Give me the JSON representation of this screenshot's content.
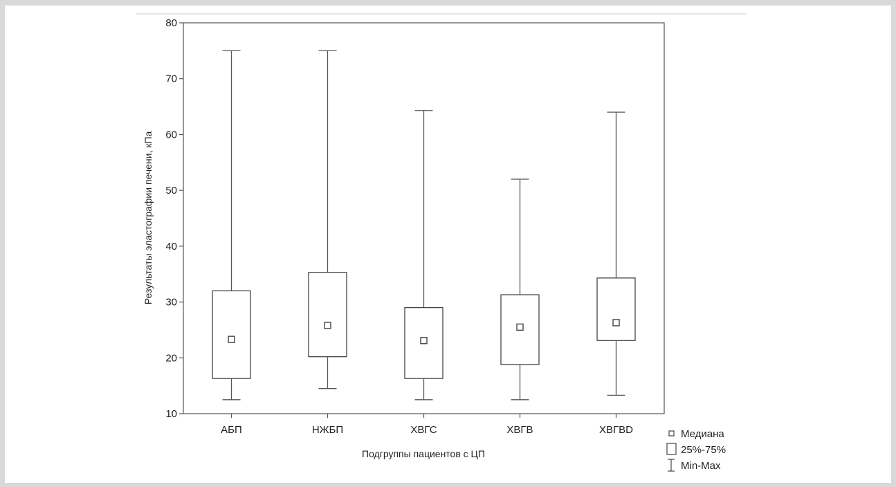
{
  "chart_data": {
    "type": "box",
    "xlabel": "Подгруппы пациентов с ЦП",
    "ylabel": "Результаты эластографии печени, кПа",
    "ylim": [
      10,
      80
    ],
    "yticks": [
      10,
      20,
      30,
      40,
      50,
      60,
      70,
      80
    ],
    "grid": false,
    "legend_position": "bottom-right, outside plot",
    "categories": [
      "АБП",
      "НЖБП",
      "ХВГС",
      "ХВГВ",
      "ХВГВD"
    ],
    "median": [
      23.3,
      25.8,
      23.1,
      25.5,
      26.3
    ],
    "q1": [
      16.3,
      20.2,
      16.3,
      18.8,
      23.1
    ],
    "q3": [
      32.0,
      35.3,
      29.0,
      31.3,
      34.3
    ],
    "min": [
      12.5,
      14.5,
      12.5,
      12.5,
      13.3
    ],
    "max": [
      75.0,
      75.0,
      64.3,
      52.0,
      64.0
    ],
    "legend": [
      {
        "symbol": "median-marker",
        "label": "Медиана"
      },
      {
        "symbol": "box",
        "label": "25%-75%"
      },
      {
        "symbol": "whisker",
        "label": "Min-Max"
      }
    ]
  }
}
